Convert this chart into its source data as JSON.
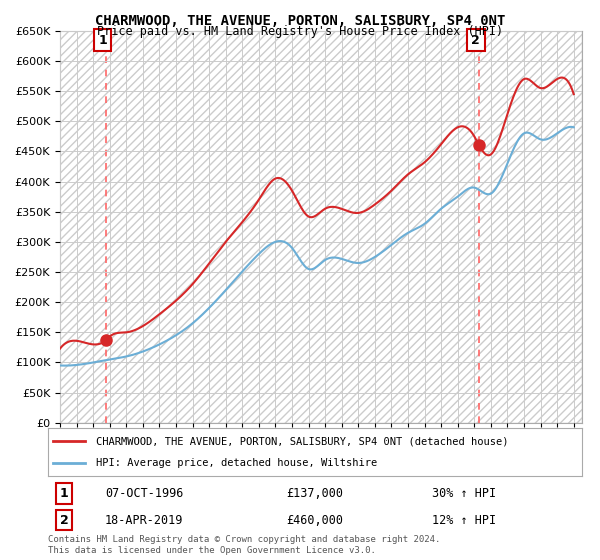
{
  "title": "CHARMWOOD, THE AVENUE, PORTON, SALISBURY, SP4 0NT",
  "subtitle": "Price paid vs. HM Land Registry's House Price Index (HPI)",
  "legend_line1": "CHARMWOOD, THE AVENUE, PORTON, SALISBURY, SP4 0NT (detached house)",
  "legend_line2": "HPI: Average price, detached house, Wiltshire",
  "annotation1_label": "1",
  "annotation1_date": "07-OCT-1996",
  "annotation1_price": "£137,000",
  "annotation1_hpi": "30% ↑ HPI",
  "annotation2_label": "2",
  "annotation2_date": "18-APR-2019",
  "annotation2_price": "£460,000",
  "annotation2_hpi": "12% ↑ HPI",
  "footer": "Contains HM Land Registry data © Crown copyright and database right 2024.\nThis data is licensed under the Open Government Licence v3.0.",
  "xmin": 1994.0,
  "xmax": 2025.5,
  "ymin": 0,
  "ymax": 650000,
  "yticks": [
    0,
    50000,
    100000,
    150000,
    200000,
    250000,
    300000,
    350000,
    400000,
    450000,
    500000,
    550000,
    600000,
    650000
  ],
  "sale1_x": 1996.77,
  "sale1_y": 137000,
  "sale2_x": 2019.29,
  "sale2_y": 460000,
  "hpi_color": "#6baed6",
  "price_color": "#d62728",
  "dashed_line_color": "#ff6666",
  "grid_color": "#cccccc"
}
